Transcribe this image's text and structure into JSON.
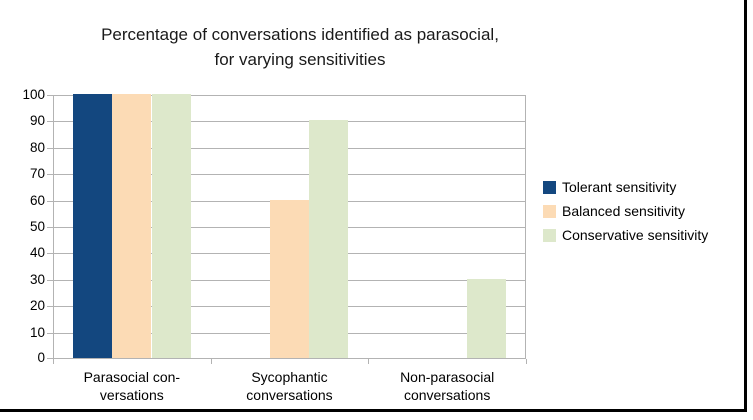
{
  "title": {
    "line1": "Percentage of conversations identified as parasocial,",
    "line2": "for varying sensitivities"
  },
  "chart_data": {
    "type": "bar",
    "title": "Percentage of conversations identified as parasocial, for varying sensitivities",
    "categories": [
      "Parasocial conversations",
      "Sycophantic conversations",
      "Non-parasocial conversations"
    ],
    "category_label_lines": [
      [
        "Parasocial con-",
        "versations"
      ],
      [
        "Sycophantic",
        "conversations"
      ],
      [
        "Non-parasocial",
        "conversations"
      ]
    ],
    "series": [
      {
        "name": "Tolerant sensitivity",
        "color": "#13477F",
        "values": [
          100,
          0,
          0
        ]
      },
      {
        "name": "Balanced sensitivity",
        "color": "#FCDBB5",
        "values": [
          100,
          60,
          0
        ]
      },
      {
        "name": "Conservative sensitivity",
        "color": "#DDE8CB",
        "values": [
          100,
          90,
          30
        ]
      }
    ],
    "ylim": [
      0,
      100
    ],
    "ytick_step": 10,
    "ytick_labels": [
      "0",
      "10",
      "20",
      "30",
      "40",
      "50",
      "60",
      "70",
      "80",
      "90",
      "100"
    ],
    "grid": true,
    "legend_position": "right",
    "axis_color": "#b3b3b3",
    "text_color": "#000000",
    "background_color": "#ffffff"
  }
}
